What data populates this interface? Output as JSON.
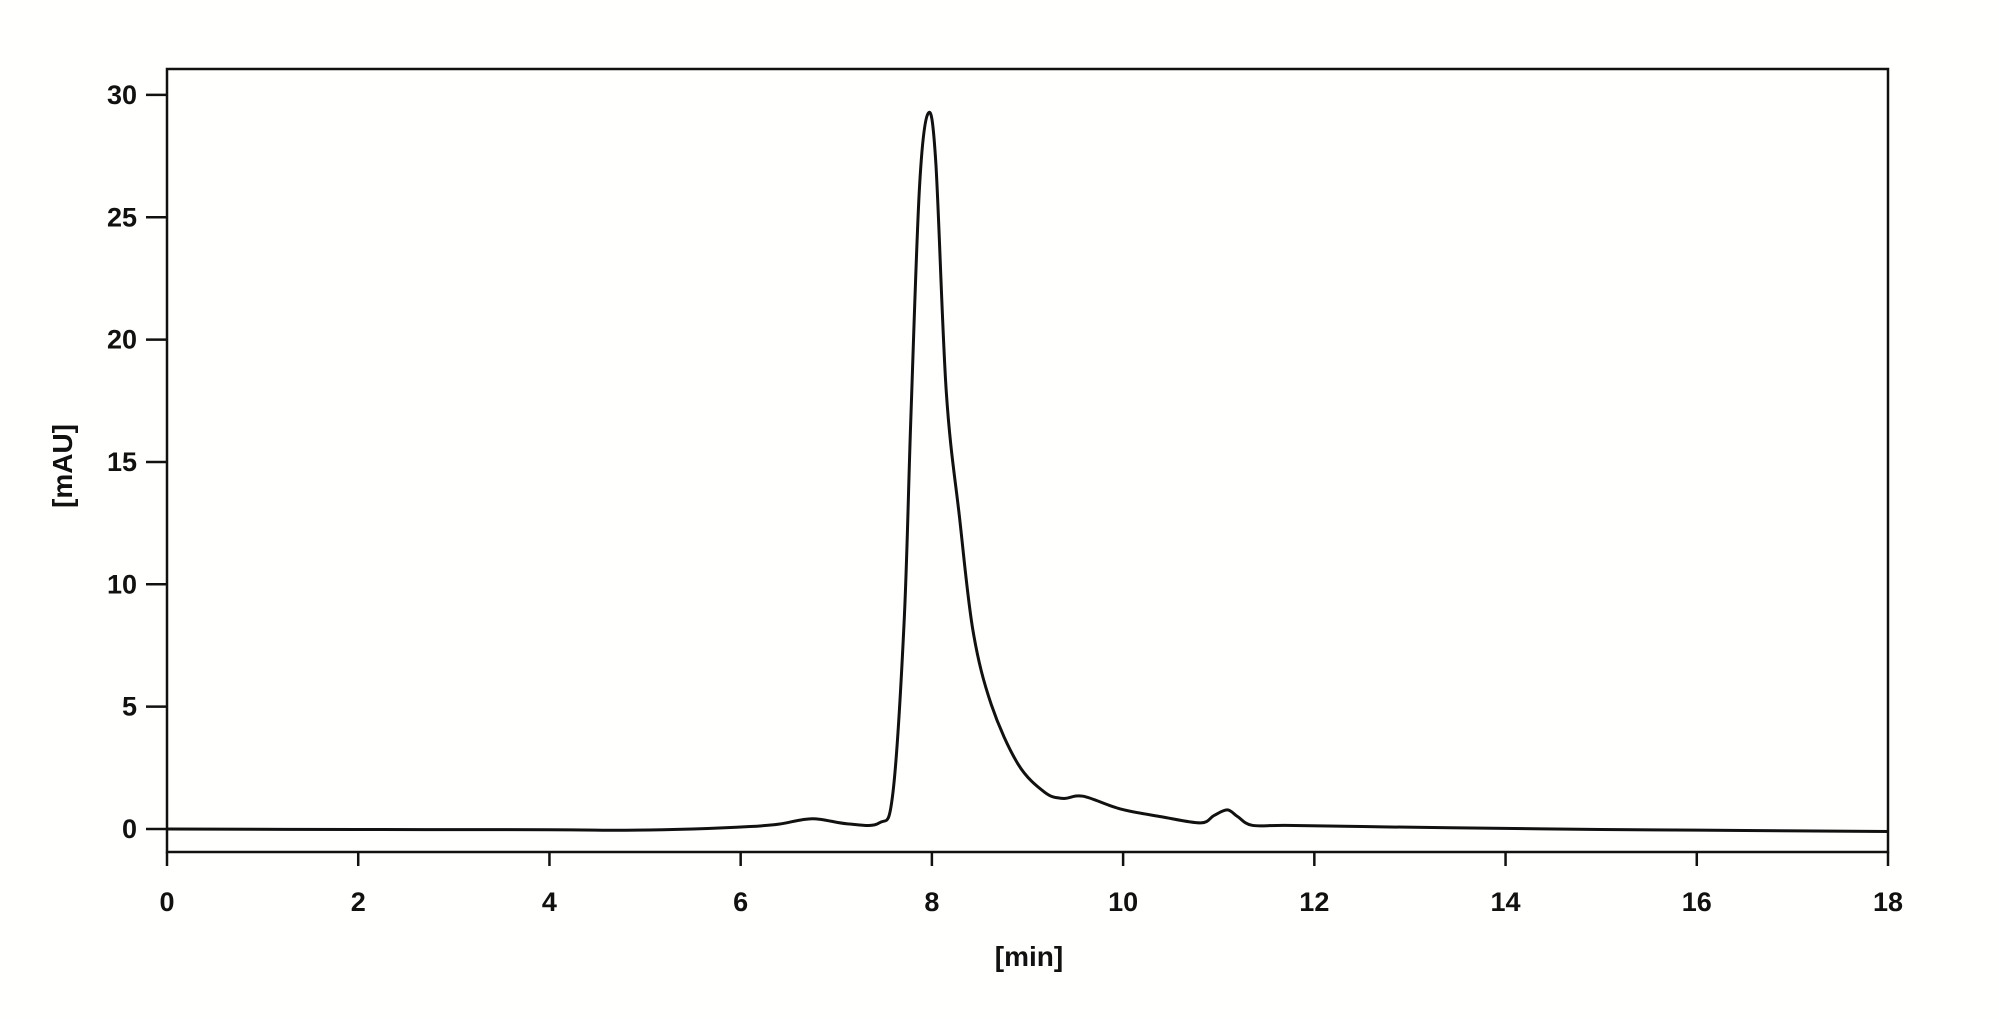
{
  "chart_data": {
    "type": "line",
    "title": "",
    "xlabel": "[min]",
    "ylabel": "[mAU]",
    "xlim": [
      0,
      18
    ],
    "ylim": [
      -0.94,
      31.06
    ],
    "x_ticks": [
      0,
      2,
      4,
      6,
      8,
      10,
      12,
      14,
      16,
      18
    ],
    "y_ticks": [
      0,
      5,
      10,
      15,
      20,
      25,
      30
    ],
    "grid": false,
    "legend": "none",
    "line_color": "#111111",
    "series": [
      {
        "x": [
          0,
          2,
          4,
          4.8,
          5.5,
          6.1,
          6.4,
          6.75,
          7.12,
          7.45,
          7.59,
          7.71,
          7.78,
          7.87,
          7.96,
          8.04,
          8.15,
          8.29,
          8.43,
          8.62,
          8.9,
          9.18,
          9.37,
          9.58,
          9.97,
          10.4,
          10.81,
          10.95,
          11.09,
          11.2,
          11.35,
          11.7,
          12.5,
          13.42,
          15,
          16.5,
          18
        ],
        "y": [
          0.0,
          -0.02,
          -0.03,
          -0.05,
          0.0,
          0.1,
          0.2,
          0.42,
          0.21,
          0.25,
          1.4,
          8.5,
          16.8,
          26.2,
          29.24,
          27.3,
          17.9,
          12.7,
          8.1,
          5.1,
          2.66,
          1.5,
          1.25,
          1.34,
          0.82,
          0.5,
          0.25,
          0.55,
          0.78,
          0.5,
          0.15,
          0.15,
          0.1,
          0.05,
          -0.02,
          -0.06,
          -0.1
        ]
      }
    ]
  }
}
